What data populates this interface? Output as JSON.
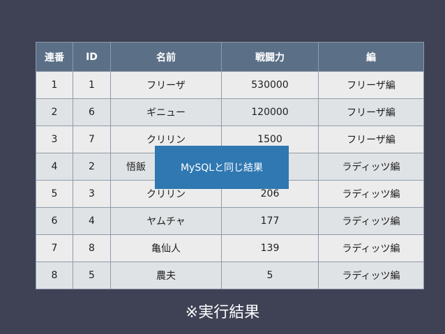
{
  "table": {
    "headers": [
      "連番",
      "ID",
      "名前",
      "戦闘力",
      "編"
    ],
    "rows": [
      [
        "1",
        "1",
        "フリーザ",
        "530000",
        "フリーザ編"
      ],
      [
        "2",
        "6",
        "ギニュー",
        "120000",
        "フリーザ編"
      ],
      [
        "3",
        "7",
        "クリリン",
        "1500",
        "フリーザ編"
      ],
      [
        "4",
        "2",
        "悟飯",
        "",
        "ラディッツ編"
      ],
      [
        "5",
        "3",
        "クリリン",
        "206",
        "ラディッツ編"
      ],
      [
        "6",
        "4",
        "ヤムチャ",
        "177",
        "ラディッツ編"
      ],
      [
        "7",
        "8",
        "亀仙人",
        "139",
        "ラディッツ編"
      ],
      [
        "8",
        "5",
        "農夫",
        "5",
        "ラディッツ編"
      ]
    ]
  },
  "overlay": {
    "label": "MySQLと同じ結果"
  },
  "caption": "※実行結果"
}
